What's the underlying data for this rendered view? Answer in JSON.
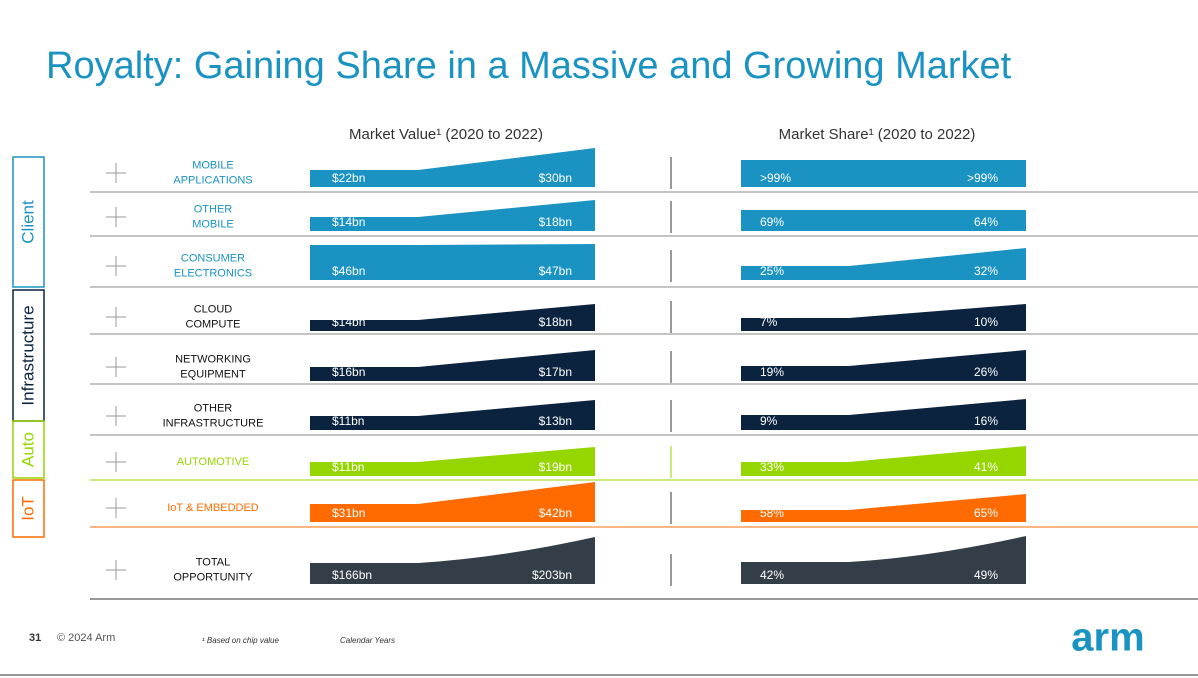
{
  "title": "Royalty: Gaining Share in a Massive and Growing Market",
  "headers": {
    "value": "Market Value¹ (2020 to 2022)",
    "share": "Market Share¹ (2020 to 2022)"
  },
  "segments": [
    {
      "name": "Client",
      "color": "#1a93c3",
      "rows": [
        {
          "label": [
            "MOBILE",
            "APPLICATIONS"
          ],
          "value_2020": "$22bn",
          "value_2022": "$30bn",
          "share_2020": ">99%",
          "share_2022": ">99%"
        },
        {
          "label": [
            "OTHER",
            "MOBILE"
          ],
          "value_2020": "$14bn",
          "value_2022": "$18bn",
          "share_2020": "69%",
          "share_2022": "64%"
        },
        {
          "label": [
            "CONSUMER",
            "ELECTRONICS"
          ],
          "value_2020": "$46bn",
          "value_2022": "$47bn",
          "share_2020": "25%",
          "share_2022": "32%"
        }
      ]
    },
    {
      "name": "Infrastructure",
      "color": "#0c2340",
      "rows": [
        {
          "label": [
            "CLOUD",
            "COMPUTE"
          ],
          "value_2020": "$14bn",
          "value_2022": "$18bn",
          "share_2020": "7%",
          "share_2022": "10%"
        },
        {
          "label": [
            "NETWORKING",
            "EQUIPMENT"
          ],
          "value_2020": "$16bn",
          "value_2022": "$17bn",
          "share_2020": "19%",
          "share_2022": "26%"
        },
        {
          "label": [
            "OTHER",
            "INFRASTRUCTURE"
          ],
          "value_2020": "$11bn",
          "value_2022": "$13bn",
          "share_2020": "9%",
          "share_2022": "16%"
        }
      ]
    },
    {
      "name": "Auto",
      "color": "#95d600",
      "rows": [
        {
          "label": [
            "AUTOMOTIVE"
          ],
          "value_2020": "$11bn",
          "value_2022": "$19bn",
          "share_2020": "33%",
          "share_2022": "41%"
        }
      ]
    },
    {
      "name": "IoT",
      "color": "#ff6b00",
      "rows": [
        {
          "label": [
            "IoT & EMBEDDED"
          ],
          "value_2020": "$31bn",
          "value_2022": "$42bn",
          "share_2020": "58%",
          "share_2022": "65%"
        }
      ]
    }
  ],
  "total": {
    "label": [
      "TOTAL",
      "OPPORTUNITY"
    ],
    "color": "#333e48",
    "value_2020": "$166bn",
    "value_2022": "$203bn",
    "share_2020": "42%",
    "share_2022": "49%"
  },
  "footer": {
    "page": "31",
    "copyright": "© 2024 Arm",
    "note": "¹ Based on chip value",
    "note2": "Calendar Years",
    "logo": "arm"
  }
}
